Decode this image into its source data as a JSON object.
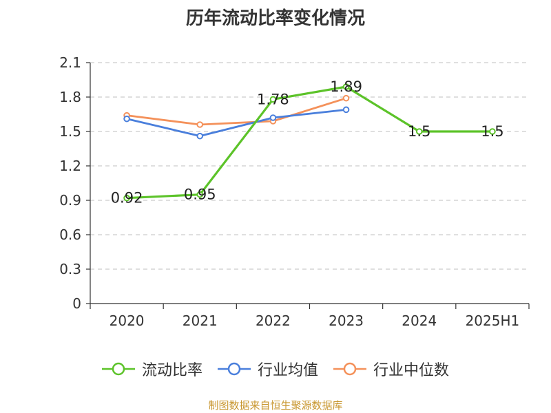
{
  "chart_data": {
    "type": "line",
    "title": "历年流动比率变化情况",
    "categories": [
      "2020",
      "2021",
      "2022",
      "2023",
      "2024",
      "2025H1"
    ],
    "ylim": [
      0,
      2.1
    ],
    "yticks": [
      "0",
      "0.3",
      "0.6",
      "0.9",
      "1.2",
      "1.5",
      "1.8",
      "2.1"
    ],
    "grid": true,
    "legend_position": "bottom",
    "series": [
      {
        "name": "流动比率",
        "color": "#5cc329",
        "values": [
          0.92,
          0.95,
          1.78,
          1.89,
          1.5,
          1.5
        ],
        "labels": [
          "0.92",
          "0.95",
          "1.78",
          "1.89",
          "1.5",
          "1.5"
        ]
      },
      {
        "name": "行业均值",
        "color": "#4a7fdc",
        "values": [
          1.61,
          1.46,
          1.62,
          1.69,
          null,
          null
        ]
      },
      {
        "name": "行业中位数",
        "color": "#f4915a",
        "values": [
          1.64,
          1.56,
          1.59,
          1.79,
          null,
          null
        ]
      }
    ]
  },
  "source": "制图数据来自恒生聚源数据库"
}
